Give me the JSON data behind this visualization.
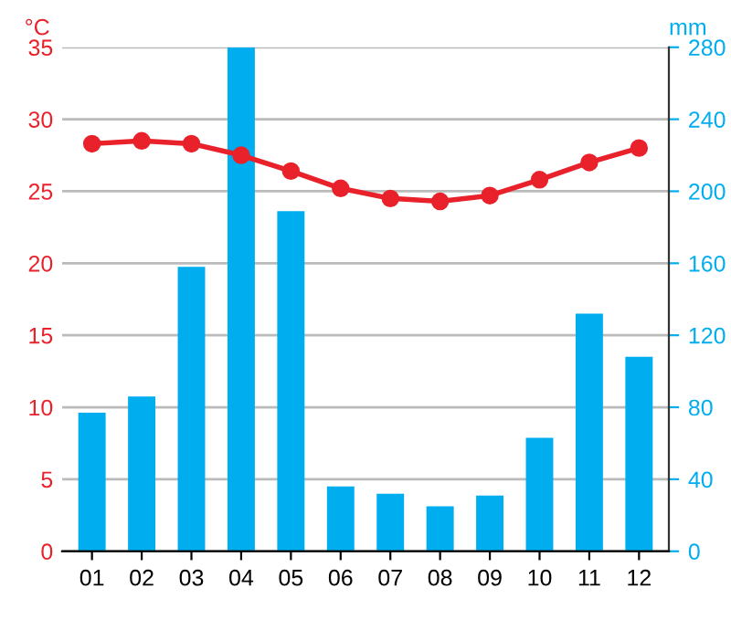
{
  "chart_data": {
    "type": "bar",
    "categories": [
      "01",
      "02",
      "03",
      "04",
      "05",
      "06",
      "07",
      "08",
      "09",
      "10",
      "11",
      "12"
    ],
    "ylabel": "°C",
    "y2label": "mm",
    "ylim": [
      0,
      35
    ],
    "yticks": [
      0,
      5,
      10,
      15,
      20,
      25,
      30,
      35
    ],
    "y2lim": [
      0,
      280
    ],
    "y2ticks": [
      0,
      40,
      80,
      120,
      160,
      200,
      240,
      280
    ],
    "grid": "y",
    "legend": false,
    "series": [
      {
        "axis": "y2",
        "color": "#00aeef",
        "values": [
          77,
          86,
          158,
          280,
          189,
          36,
          32,
          25,
          31,
          63,
          132,
          108
        ]
      },
      {
        "type": "line",
        "axis": "y",
        "color": "#e8212b",
        "marker": "circle",
        "line_style": "solid",
        "values": [
          28.3,
          28.5,
          28.3,
          27.5,
          26.4,
          25.2,
          24.5,
          24.3,
          24.7,
          25.8,
          27.0,
          28.0
        ]
      }
    ]
  }
}
